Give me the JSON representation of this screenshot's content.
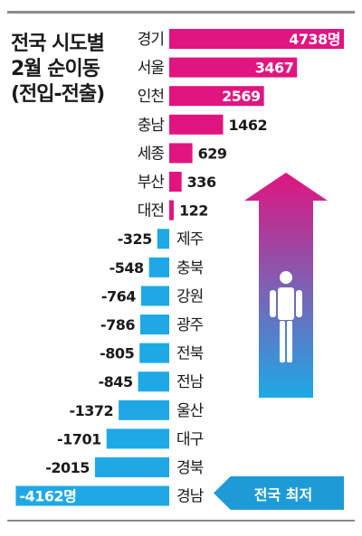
{
  "title": {
    "line1": "전국 시도별",
    "line2": "2월 순이동",
    "line3": "(전입-전출)"
  },
  "callout_label": "전국 최저",
  "colors": {
    "positive": "#e0157f",
    "negative": "#1ea9e6",
    "callout": "#1e9bd6",
    "arrow_top": "#e0157f",
    "arrow_bottom": "#1ea9e6"
  },
  "chart_data": {
    "type": "bar",
    "orientation": "horizontal",
    "unit": "명",
    "categories": [
      "경기",
      "서울",
      "인천",
      "충남",
      "세종",
      "부산",
      "대전",
      "제주",
      "충북",
      "강원",
      "광주",
      "전북",
      "전남",
      "울산",
      "대구",
      "경북",
      "경남"
    ],
    "values": [
      4738,
      3467,
      2569,
      1462,
      629,
      336,
      122,
      -325,
      -548,
      -764,
      -786,
      -805,
      -845,
      -1372,
      -1701,
      -2015,
      -4162
    ],
    "value_labels": [
      "4738명",
      "3467",
      "2569",
      "1462",
      "629",
      "336",
      "122",
      "-325",
      "-548",
      "-764",
      "-786",
      "-805",
      "-845",
      "-1372",
      "-1701",
      "-2015",
      "-4162명"
    ]
  }
}
